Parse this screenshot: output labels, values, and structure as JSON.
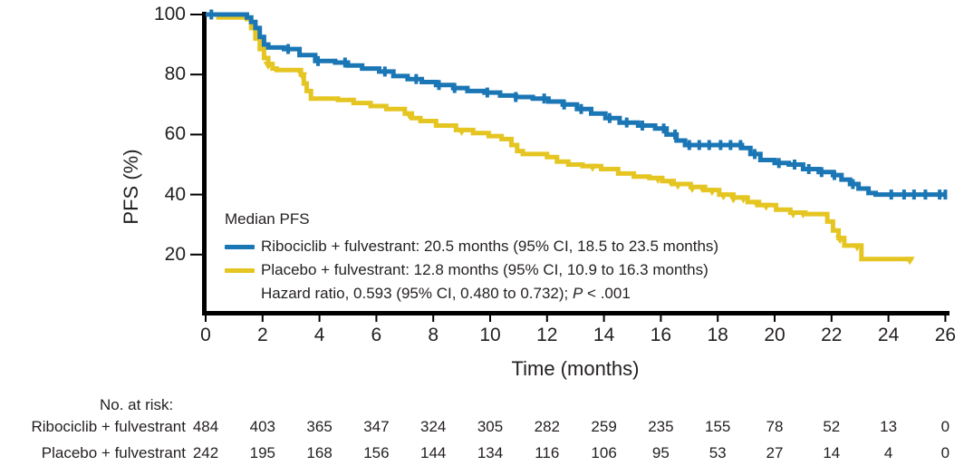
{
  "figure": {
    "background": "#ffffff",
    "text_color": "#231f20",
    "axis_color": "#000000"
  },
  "axes": {
    "y_label": "PFS (%)",
    "x_label": "Time (months)",
    "x_ticks": [
      0,
      2,
      4,
      6,
      8,
      10,
      12,
      14,
      16,
      18,
      20,
      22,
      24,
      26
    ],
    "y_ticks": [
      20,
      40,
      60,
      80,
      100
    ],
    "x_range": [
      0,
      26
    ],
    "y_range": [
      0,
      100
    ]
  },
  "legend": {
    "title": "Median PFS",
    "entries": [
      {
        "id": "ribociclib",
        "color": "#1a76b4",
        "label": "Ribociclib + fulvestrant: 20.5 months (95% CI, 18.5 to 23.5 months)"
      },
      {
        "id": "placebo",
        "color": "#e5c521",
        "label": "Placebo + fulvestrant: 12.8 months (95% CI, 10.9 to 16.3 months)"
      }
    ],
    "hazard_prefix": "Hazard ratio, 0.593 (95% CI, 0.480 to 0.732); ",
    "hazard_p": "P",
    "hazard_suffix": " < .001"
  },
  "chart_data": {
    "type": "line",
    "subtype": "kaplan-meier-step",
    "title": "",
    "xlabel": "Time (months)",
    "ylabel": "PFS (%)",
    "xlim": [
      0,
      26
    ],
    "ylim": [
      0,
      100
    ],
    "grid": false,
    "legend_position": "inside-lower-left",
    "hazard_ratio": "0.593 (95% CI, 0.480 to 0.732)",
    "p_value": "< .001",
    "series": [
      {
        "name": "Ribociclib + fulvestrant",
        "color": "#1a76b4",
        "median_months": 20.5,
        "median_ci": "18.5 to 23.5 months",
        "steps": [
          [
            0,
            100
          ],
          [
            1.45,
            99
          ],
          [
            1.6,
            97.5
          ],
          [
            1.75,
            95.5
          ],
          [
            1.9,
            92.5
          ],
          [
            2.05,
            90
          ],
          [
            2.2,
            89
          ],
          [
            2.75,
            88.5
          ],
          [
            3.3,
            86.5
          ],
          [
            3.85,
            84.5
          ],
          [
            4.55,
            84
          ],
          [
            5.0,
            83
          ],
          [
            5.5,
            82
          ],
          [
            6.1,
            81
          ],
          [
            6.6,
            79.5
          ],
          [
            7.1,
            78.5
          ],
          [
            7.6,
            77.5
          ],
          [
            8.1,
            76.5
          ],
          [
            8.7,
            75.5
          ],
          [
            9.2,
            74.5
          ],
          [
            9.8,
            74
          ],
          [
            10.35,
            73
          ],
          [
            10.9,
            72.5
          ],
          [
            11.5,
            72
          ],
          [
            12.05,
            71
          ],
          [
            12.55,
            70
          ],
          [
            13.05,
            68.5
          ],
          [
            13.55,
            67
          ],
          [
            14.05,
            65.5
          ],
          [
            14.55,
            64
          ],
          [
            15.2,
            63
          ],
          [
            15.8,
            62
          ],
          [
            16.2,
            60
          ],
          [
            16.55,
            58
          ],
          [
            16.85,
            56.5
          ],
          [
            18.85,
            55.5
          ],
          [
            19.15,
            53.5
          ],
          [
            19.5,
            51.5
          ],
          [
            20.0,
            50.5
          ],
          [
            20.5,
            50
          ],
          [
            21.0,
            48.5
          ],
          [
            21.55,
            47.5
          ],
          [
            22.05,
            46.5
          ],
          [
            22.35,
            45
          ],
          [
            22.65,
            43.5
          ],
          [
            22.95,
            42
          ],
          [
            23.3,
            40.5
          ],
          [
            23.55,
            40
          ],
          [
            26.05,
            40
          ]
        ],
        "censor_times": [
          0.2,
          2.9,
          3.95,
          4.9,
          6.3,
          7.4,
          8.2,
          8.75,
          9.9,
          10.9,
          11.9,
          12.6,
          13.2,
          14.2,
          14.8,
          15.35,
          16.1,
          16.5,
          17.0,
          17.35,
          17.7,
          18.1,
          18.45,
          18.8,
          19.3,
          20.15,
          20.7,
          21.2,
          21.65,
          22.1,
          22.75,
          24.1,
          24.55,
          24.9,
          25.3,
          25.8,
          26.0
        ]
      },
      {
        "name": "Placebo + fulvestrant",
        "color": "#e5c521",
        "median_months": 12.8,
        "median_ci": "10.9 to 16.3 months",
        "steps": [
          [
            0,
            100
          ],
          [
            0.45,
            99
          ],
          [
            1.45,
            98.5
          ],
          [
            1.6,
            95.5
          ],
          [
            1.75,
            92
          ],
          [
            1.9,
            88.5
          ],
          [
            2.05,
            85.5
          ],
          [
            2.2,
            83.5
          ],
          [
            2.35,
            82
          ],
          [
            2.5,
            81.5
          ],
          [
            3.35,
            80
          ],
          [
            3.45,
            77
          ],
          [
            3.55,
            74.5
          ],
          [
            3.7,
            72
          ],
          [
            4.65,
            71.5
          ],
          [
            5.2,
            70.5
          ],
          [
            5.8,
            69.5
          ],
          [
            6.35,
            68.5
          ],
          [
            7.0,
            67
          ],
          [
            7.25,
            65.5
          ],
          [
            7.55,
            64.5
          ],
          [
            8.1,
            63
          ],
          [
            8.8,
            61.5
          ],
          [
            9.4,
            60.5
          ],
          [
            9.95,
            59.5
          ],
          [
            10.4,
            58.5
          ],
          [
            10.75,
            56.5
          ],
          [
            10.95,
            54.5
          ],
          [
            11.15,
            53.5
          ],
          [
            12.0,
            52.5
          ],
          [
            12.35,
            51
          ],
          [
            12.75,
            50
          ],
          [
            13.25,
            49.5
          ],
          [
            13.9,
            48.5
          ],
          [
            14.5,
            47
          ],
          [
            15.05,
            46
          ],
          [
            15.6,
            45.5
          ],
          [
            16.05,
            44.5
          ],
          [
            16.45,
            43.5
          ],
          [
            17.05,
            42.5
          ],
          [
            17.55,
            41.5
          ],
          [
            18.05,
            40
          ],
          [
            18.55,
            39
          ],
          [
            19.05,
            37.5
          ],
          [
            19.45,
            36.5
          ],
          [
            20.05,
            35
          ],
          [
            20.55,
            34
          ],
          [
            21.05,
            33.5
          ],
          [
            21.85,
            31
          ],
          [
            22.05,
            28
          ],
          [
            22.25,
            25.5
          ],
          [
            22.45,
            23
          ],
          [
            23.05,
            18.5
          ],
          [
            24.85,
            18.5
          ]
        ],
        "censor_times": [
          2.2,
          3.4,
          7.15,
          9.0,
          13.6,
          15.9,
          16.35,
          16.6,
          17.1,
          17.45,
          17.8,
          18.2,
          18.55,
          18.9,
          19.35,
          19.7,
          20.65,
          21.0,
          22.3,
          22.9,
          24.75
        ]
      }
    ]
  },
  "at_risk": {
    "header": "No. at risk:",
    "time_points": [
      0,
      2,
      4,
      6,
      8,
      10,
      12,
      14,
      16,
      18,
      20,
      22,
      24,
      26
    ],
    "rows": [
      {
        "label": "Ribociclib + fulvestrant",
        "values": [
          484,
          403,
          365,
          347,
          324,
          305,
          282,
          259,
          235,
          155,
          78,
          52,
          13,
          0
        ]
      },
      {
        "label": "Placebo + fulvestrant",
        "values": [
          242,
          195,
          168,
          156,
          144,
          134,
          116,
          106,
          95,
          53,
          27,
          14,
          4,
          0
        ]
      }
    ]
  }
}
